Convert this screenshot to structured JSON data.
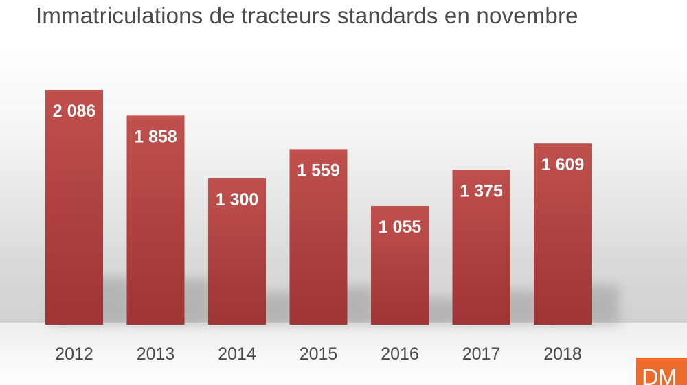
{
  "chart_data": {
    "type": "bar",
    "title": "Immatriculations de tracteurs standards en novembre",
    "categories": [
      "2012",
      "2013",
      "2014",
      "2015",
      "2016",
      "2017",
      "2018"
    ],
    "values": [
      2086,
      1858,
      1300,
      1559,
      1055,
      1375,
      1609
    ],
    "value_labels": [
      "2 086",
      "1 858",
      "1 300",
      "1 559",
      "1 055",
      "1 375",
      "1 609"
    ],
    "xlabel": "",
    "ylabel": "",
    "ylim": [
      0,
      2086
    ],
    "grid": false,
    "legend": "none",
    "colors": {
      "bar_top": "#c0504d",
      "bar_bottom": "#9e3434",
      "label": "#ffffff",
      "axis_text": "#4a4a4a"
    }
  },
  "logo": {
    "text": "DM",
    "color": "#ec6a2a"
  }
}
